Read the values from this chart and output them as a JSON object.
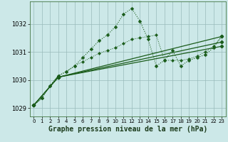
{
  "title": "Graphe pression niveau de la mer (hPa)",
  "bg_color": "#cce8e8",
  "plot_bg_color": "#cce8e8",
  "grid_color": "#99bbbb",
  "line_color": "#1a5c1a",
  "xlim": [
    -0.5,
    23.5
  ],
  "ylim": [
    1028.7,
    1032.8
  ],
  "yticks": [
    1029,
    1030,
    1031,
    1032
  ],
  "xticks": [
    0,
    1,
    2,
    3,
    4,
    5,
    6,
    7,
    8,
    9,
    10,
    11,
    12,
    13,
    14,
    15,
    16,
    17,
    18,
    19,
    20,
    21,
    22,
    23
  ],
  "series_peak_x": [
    0,
    1,
    2,
    3,
    4,
    5,
    6,
    7,
    8,
    9,
    10,
    11,
    12,
    13,
    14,
    15,
    16,
    17,
    18,
    19,
    20,
    21,
    22,
    23
  ],
  "series_peak_y": [
    1029.1,
    1029.35,
    1029.8,
    1030.15,
    1030.3,
    1030.5,
    1030.8,
    1031.1,
    1031.4,
    1031.6,
    1031.9,
    1032.35,
    1032.55,
    1032.1,
    1031.45,
    1030.5,
    1030.7,
    1031.05,
    1030.5,
    1030.7,
    1030.8,
    1030.9,
    1031.15,
    1031.55
  ],
  "series_line1_x": [
    0,
    3,
    23
  ],
  "series_line1_y": [
    1029.1,
    1030.1,
    1031.55
  ],
  "series_line2_x": [
    0,
    3,
    23
  ],
  "series_line2_y": [
    1029.1,
    1030.1,
    1031.35
  ],
  "series_line3_x": [
    0,
    3,
    23
  ],
  "series_line3_y": [
    1029.1,
    1030.1,
    1031.2
  ],
  "series_dotted_x": [
    0,
    1,
    2,
    3,
    4,
    5,
    6,
    7,
    8,
    9,
    10,
    11,
    12,
    13,
    14,
    15,
    16,
    17,
    18,
    19,
    20,
    21,
    22,
    23
  ],
  "series_dotted_y": [
    1029.1,
    1029.35,
    1029.8,
    1030.15,
    1030.3,
    1030.5,
    1030.65,
    1030.8,
    1030.95,
    1031.05,
    1031.15,
    1031.3,
    1031.45,
    1031.5,
    1031.55,
    1031.6,
    1030.7,
    1030.7,
    1030.7,
    1030.75,
    1030.85,
    1031.0,
    1031.2,
    1031.55
  ]
}
